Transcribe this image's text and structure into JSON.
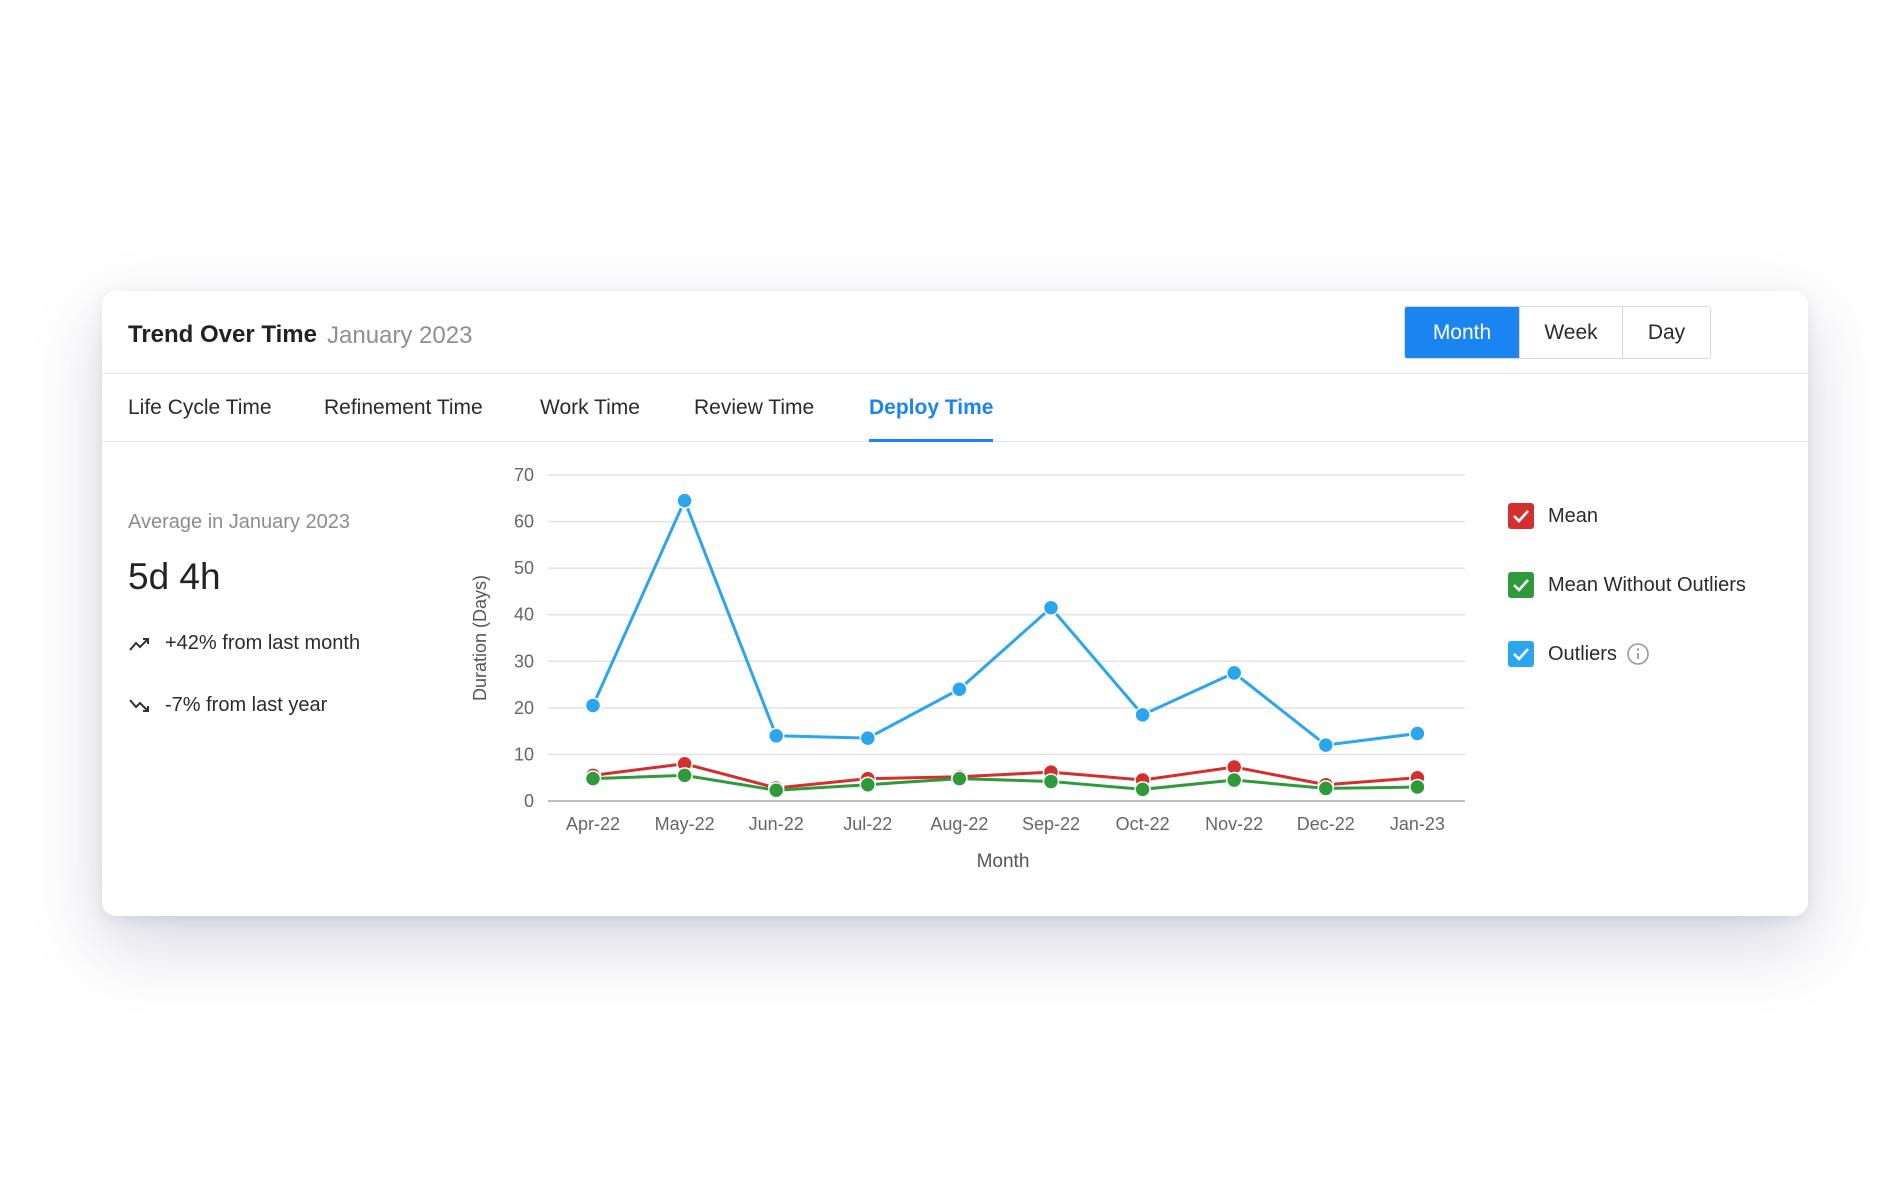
{
  "header": {
    "title": "Trend Over Time",
    "subtitle": "January 2023",
    "granularity": [
      {
        "label": "Month",
        "active": true
      },
      {
        "label": "Week",
        "active": false
      },
      {
        "label": "Day",
        "active": false
      }
    ],
    "copy_icon": "copy-icon"
  },
  "tabs": [
    {
      "label": "Life Cycle Time",
      "active": false
    },
    {
      "label": "Refinement Time",
      "active": false
    },
    {
      "label": "Work Time",
      "active": false
    },
    {
      "label": "Review Time",
      "active": false
    },
    {
      "label": "Deploy Time",
      "active": true
    }
  ],
  "stats": {
    "label": "Average in January 2023",
    "value": "5d 4h",
    "trend_month": "+42% from last month",
    "trend_month_icon": "trending-up-icon",
    "trend_year": "-7% from last year",
    "trend_year_icon": "trending-down-icon"
  },
  "legend": [
    {
      "label": "Mean",
      "color": "#d32f2f",
      "checked": true
    },
    {
      "label": "Mean Without Outliers",
      "color": "#2e9a3a",
      "checked": true
    },
    {
      "label": "Outliers",
      "color": "#2aa5ee",
      "checked": true,
      "icon": "info-icon"
    }
  ],
  "chart_data": {
    "type": "line",
    "xlabel": "Month",
    "ylabel": "Duration (Days)",
    "ylim": [
      0,
      70
    ],
    "yticks": [
      0,
      10,
      20,
      30,
      40,
      50,
      60,
      70
    ],
    "grid": true,
    "legend_position": "right",
    "categories": [
      "Apr-22",
      "May-22",
      "Jun-22",
      "Jul-22",
      "Aug-22",
      "Sep-22",
      "Oct-22",
      "Nov-22",
      "Dec-22",
      "Jan-23"
    ],
    "series": [
      {
        "name": "Outliers",
        "color": "#2aa5ee",
        "values": [
          20.5,
          64.5,
          14,
          13.5,
          24,
          41.5,
          18.5,
          27.5,
          12,
          14.5
        ]
      },
      {
        "name": "Mean",
        "color": "#d32f2f",
        "values": [
          5.5,
          8,
          2.8,
          4.8,
          5.2,
          6.2,
          4.5,
          7.3,
          3.5,
          5
        ]
      },
      {
        "name": "Mean Without Outliers",
        "color": "#2e9a3a",
        "values": [
          4.8,
          5.5,
          2.3,
          3.5,
          4.8,
          4.2,
          2.5,
          4.5,
          2.7,
          3
        ]
      }
    ]
  }
}
